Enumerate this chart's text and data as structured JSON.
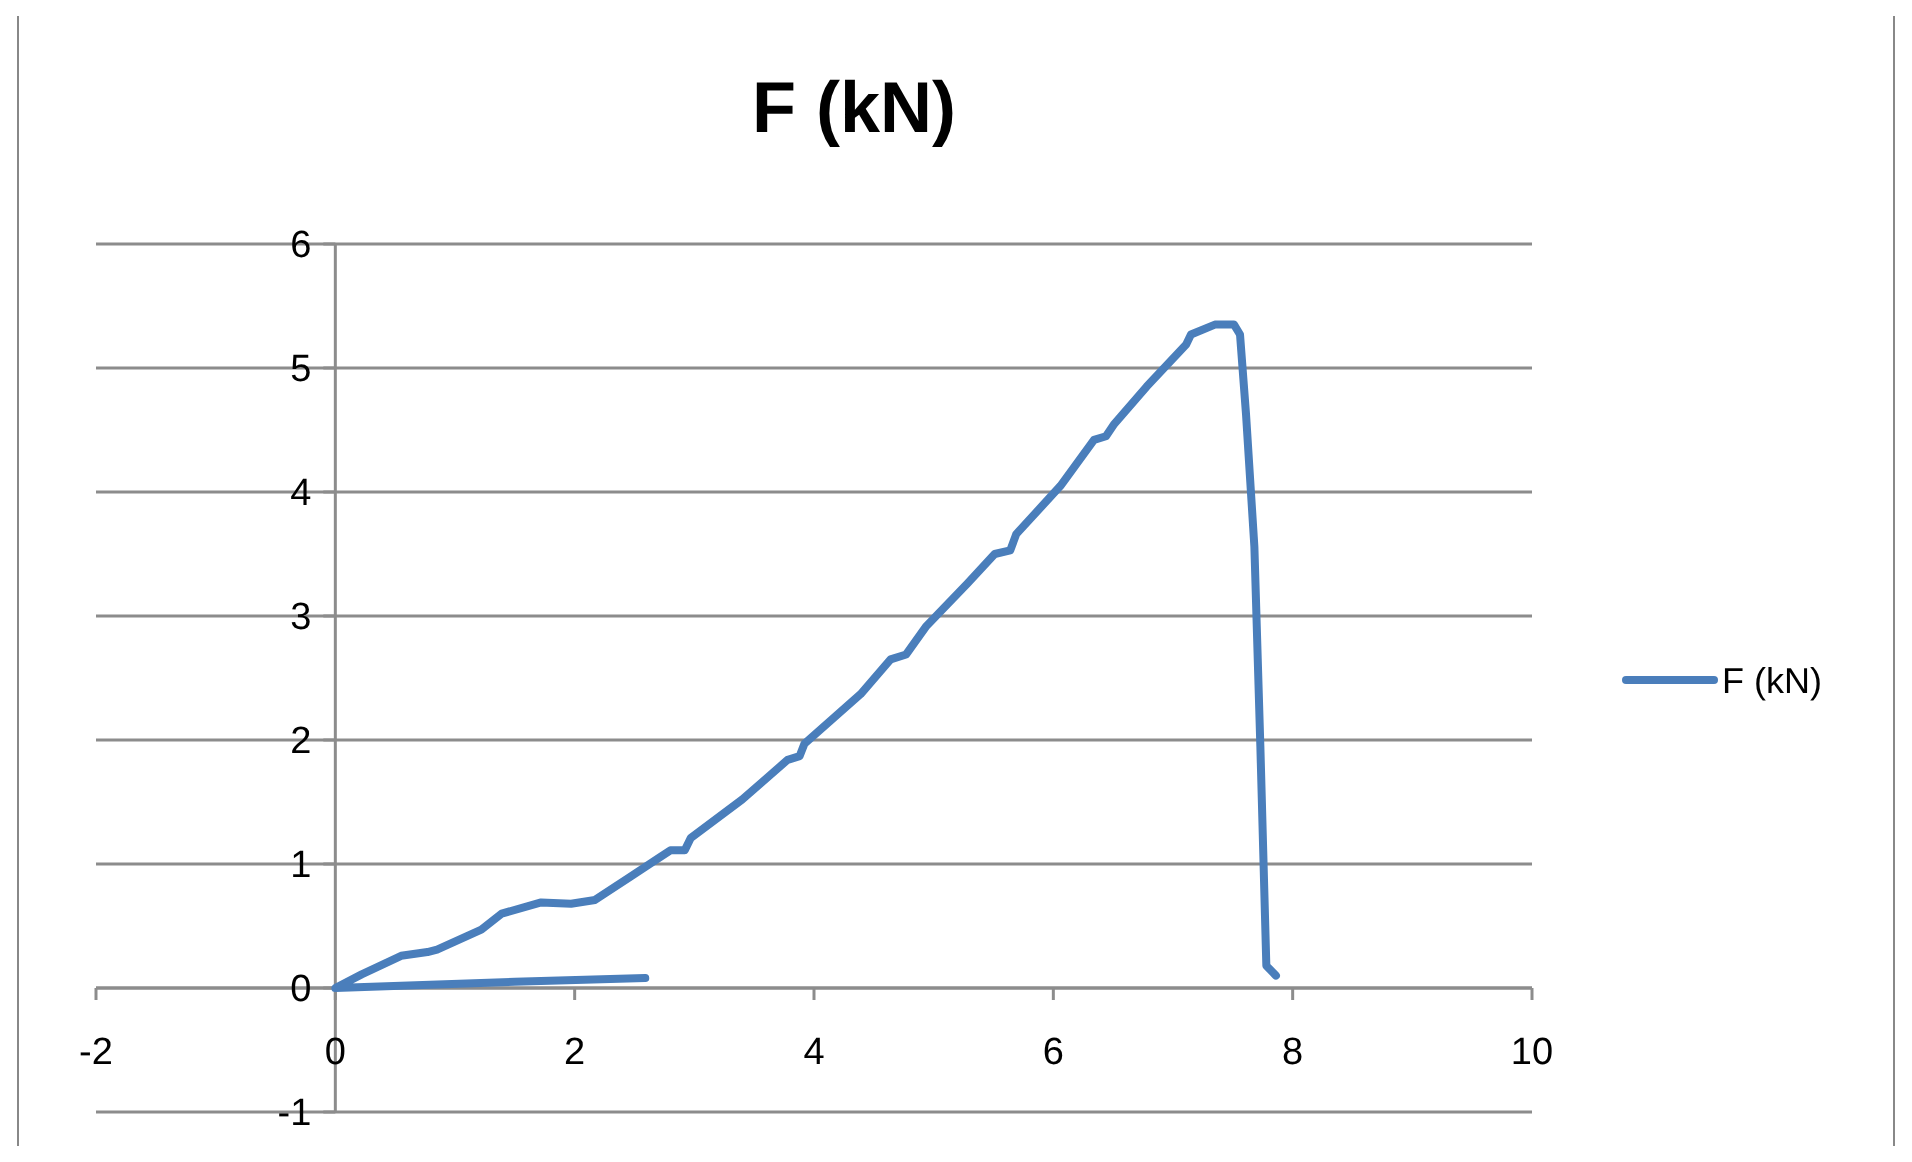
{
  "chart_data": {
    "type": "line",
    "title": "F (kN)",
    "series": [
      {
        "name": "F (kN)",
        "color": "#4a7ebb",
        "x": [
          2.59,
          1.5,
          0,
          0.22,
          0.55,
          0.77,
          0.85,
          1.22,
          1.39,
          1.72,
          1.97,
          2.17,
          2.47,
          2.72,
          2.8,
          2.92,
          2.97,
          3.4,
          3.78,
          3.88,
          3.92,
          4.39,
          4.64,
          4.77,
          4.94,
          5.28,
          5.51,
          5.64,
          5.69,
          6.06,
          6.34,
          6.44,
          6.51,
          6.78,
          7.11,
          7.15,
          7.35,
          7.51,
          7.56,
          7.61,
          7.68,
          7.73,
          7.78,
          7.86
        ],
        "values": [
          0.08,
          0.05,
          0,
          0.11,
          0.26,
          0.29,
          0.31,
          0.47,
          0.6,
          0.69,
          0.68,
          0.71,
          0.9,
          1.06,
          1.11,
          1.11,
          1.21,
          1.52,
          1.84,
          1.87,
          1.97,
          2.37,
          2.65,
          2.69,
          2.92,
          3.26,
          3.5,
          3.53,
          3.66,
          4.05,
          4.42,
          4.45,
          4.55,
          4.85,
          5.19,
          5.27,
          5.35,
          5.35,
          5.27,
          4.63,
          3.56,
          1.95,
          0.18,
          0.1
        ]
      }
    ],
    "xlim": [
      -2,
      10
    ],
    "xticks": [
      -2,
      0,
      2,
      4,
      6,
      8,
      10
    ],
    "ylim": [
      -1,
      6
    ],
    "yticks": [
      -1,
      0,
      1,
      2,
      3,
      4,
      5,
      6
    ],
    "grid": "y",
    "legend": "right",
    "marker": "none",
    "line_style": "solid"
  }
}
